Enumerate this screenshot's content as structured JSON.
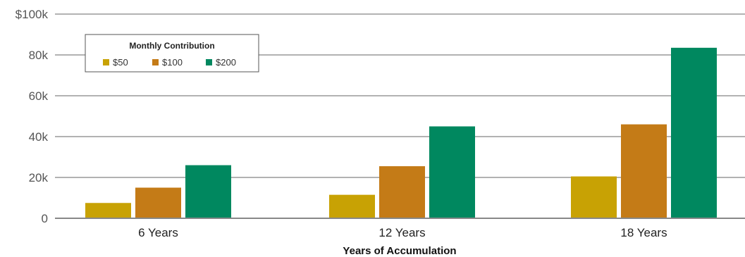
{
  "chart_data": {
    "type": "bar",
    "categories": [
      "6 Years",
      "12 Years",
      "18 Years"
    ],
    "series": [
      {
        "name": "$50",
        "values": [
          7500,
          11500,
          20500
        ],
        "color": "#c8a204"
      },
      {
        "name": "$100",
        "values": [
          15000,
          25500,
          46000
        ],
        "color": "#c47b17"
      },
      {
        "name": "$200",
        "values": [
          26000,
          45000,
          83500
        ],
        "color": "#00885f"
      }
    ],
    "xlabel": "Years of Accumulation",
    "ylabel": "",
    "ylim": [
      0,
      100000
    ],
    "yticks": [
      0,
      20000,
      40000,
      60000,
      80000,
      100000
    ],
    "ytick_labels": [
      "0",
      "20k",
      "40k",
      "60k",
      "80k",
      "$100k"
    ],
    "legend_title": "Monthly Contribution",
    "legend_position": "top-left",
    "grid": true
  }
}
